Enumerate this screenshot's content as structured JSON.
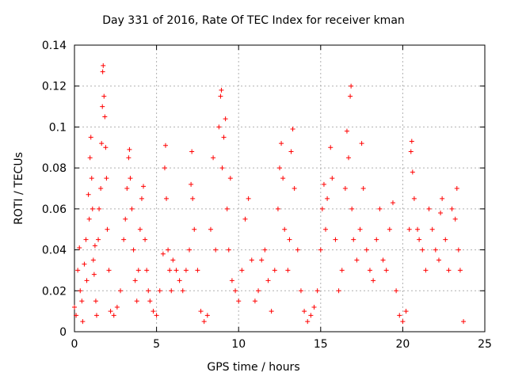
{
  "chart_data": {
    "type": "scatter",
    "title": "Day 331 of 2016, Rate Of TEC Index for receiver kman",
    "xlabel": "GPS time / hours",
    "ylabel": "ROTI / TECUs",
    "xlim": [
      0,
      24
    ],
    "ylim": [
      0,
      0.14
    ],
    "xticks": [
      0,
      5,
      10,
      15,
      20,
      25
    ],
    "xtick_labels": [
      "0",
      "5",
      "10",
      "15",
      "20",
      "25"
    ],
    "yticks": [
      0,
      0.02,
      0.04,
      0.06,
      0.08,
      0.1,
      0.12,
      0.14
    ],
    "ytick_labels": [
      "0",
      "0.02",
      "0.04",
      "0.06",
      "0.08",
      "0.1",
      "0.12",
      "0.14"
    ],
    "grid": true,
    "marker": "+",
    "color": "#ff0000",
    "series": [
      {
        "points": [
          [
            0.0,
            0.012
          ],
          [
            0.1,
            0.008
          ],
          [
            0.2,
            0.03
          ],
          [
            0.3,
            0.041
          ],
          [
            0.35,
            0.02
          ],
          [
            0.45,
            0.015
          ],
          [
            0.5,
            0.005
          ],
          [
            0.6,
            0.033
          ],
          [
            0.7,
            0.045
          ],
          [
            0.75,
            0.025
          ],
          [
            0.85,
            0.067
          ],
          [
            0.9,
            0.055
          ],
          [
            0.95,
            0.085
          ],
          [
            1.0,
            0.095
          ],
          [
            1.05,
            0.075
          ],
          [
            1.1,
            0.06
          ],
          [
            1.15,
            0.035
          ],
          [
            1.2,
            0.028
          ],
          [
            1.25,
            0.042
          ],
          [
            1.3,
            0.015
          ],
          [
            1.35,
            0.008
          ],
          [
            1.45,
            0.045
          ],
          [
            1.5,
            0.06
          ],
          [
            1.6,
            0.07
          ],
          [
            1.65,
            0.092
          ],
          [
            1.7,
            0.11
          ],
          [
            1.72,
            0.127
          ],
          [
            1.75,
            0.13
          ],
          [
            1.8,
            0.115
          ],
          [
            1.85,
            0.105
          ],
          [
            1.9,
            0.09
          ],
          [
            1.95,
            0.075
          ],
          [
            2.0,
            0.05
          ],
          [
            2.1,
            0.03
          ],
          [
            2.2,
            0.01
          ],
          [
            2.4,
            0.008
          ],
          [
            2.6,
            0.012
          ],
          [
            2.8,
            0.02
          ],
          [
            3.0,
            0.045
          ],
          [
            3.1,
            0.055
          ],
          [
            3.2,
            0.07
          ],
          [
            3.3,
            0.085
          ],
          [
            3.35,
            0.089
          ],
          [
            3.4,
            0.075
          ],
          [
            3.5,
            0.06
          ],
          [
            3.6,
            0.04
          ],
          [
            3.7,
            0.025
          ],
          [
            3.8,
            0.015
          ],
          [
            3.9,
            0.03
          ],
          [
            4.0,
            0.05
          ],
          [
            4.1,
            0.065
          ],
          [
            4.2,
            0.071
          ],
          [
            4.3,
            0.045
          ],
          [
            4.4,
            0.03
          ],
          [
            4.5,
            0.02
          ],
          [
            4.6,
            0.015
          ],
          [
            4.8,
            0.01
          ],
          [
            5.0,
            0.008
          ],
          [
            5.2,
            0.02
          ],
          [
            5.4,
            0.038
          ],
          [
            5.5,
            0.08
          ],
          [
            5.55,
            0.091
          ],
          [
            5.6,
            0.065
          ],
          [
            5.7,
            0.04
          ],
          [
            5.8,
            0.03
          ],
          [
            5.9,
            0.02
          ],
          [
            6.0,
            0.035
          ],
          [
            6.2,
            0.03
          ],
          [
            6.4,
            0.025
          ],
          [
            6.6,
            0.02
          ],
          [
            6.8,
            0.03
          ],
          [
            7.0,
            0.04
          ],
          [
            7.1,
            0.072
          ],
          [
            7.15,
            0.088
          ],
          [
            7.2,
            0.065
          ],
          [
            7.3,
            0.05
          ],
          [
            7.5,
            0.03
          ],
          [
            7.7,
            0.01
          ],
          [
            7.9,
            0.005
          ],
          [
            8.1,
            0.008
          ],
          [
            8.3,
            0.05
          ],
          [
            8.45,
            0.085
          ],
          [
            8.6,
            0.04
          ],
          [
            8.8,
            0.1
          ],
          [
            8.9,
            0.115
          ],
          [
            8.95,
            0.118
          ],
          [
            9.0,
            0.08
          ],
          [
            9.1,
            0.095
          ],
          [
            9.2,
            0.104
          ],
          [
            9.3,
            0.06
          ],
          [
            9.4,
            0.04
          ],
          [
            9.5,
            0.075
          ],
          [
            9.6,
            0.025
          ],
          [
            9.8,
            0.02
          ],
          [
            10.0,
            0.015
          ],
          [
            10.2,
            0.03
          ],
          [
            10.4,
            0.055
          ],
          [
            10.6,
            0.065
          ],
          [
            10.8,
            0.035
          ],
          [
            11.0,
            0.015
          ],
          [
            11.2,
            0.02
          ],
          [
            11.4,
            0.035
          ],
          [
            11.6,
            0.04
          ],
          [
            11.8,
            0.025
          ],
          [
            12.0,
            0.01
          ],
          [
            12.2,
            0.03
          ],
          [
            12.4,
            0.06
          ],
          [
            12.5,
            0.08
          ],
          [
            12.6,
            0.092
          ],
          [
            12.7,
            0.075
          ],
          [
            12.8,
            0.05
          ],
          [
            13.0,
            0.03
          ],
          [
            13.1,
            0.045
          ],
          [
            13.2,
            0.088
          ],
          [
            13.3,
            0.099
          ],
          [
            13.4,
            0.07
          ],
          [
            13.6,
            0.04
          ],
          [
            13.8,
            0.02
          ],
          [
            14.0,
            0.01
          ],
          [
            14.2,
            0.005
          ],
          [
            14.4,
            0.008
          ],
          [
            14.6,
            0.012
          ],
          [
            14.8,
            0.02
          ],
          [
            15.0,
            0.04
          ],
          [
            15.1,
            0.06
          ],
          [
            15.2,
            0.072
          ],
          [
            15.3,
            0.05
          ],
          [
            15.4,
            0.065
          ],
          [
            15.6,
            0.09
          ],
          [
            15.7,
            0.075
          ],
          [
            15.9,
            0.045
          ],
          [
            16.1,
            0.02
          ],
          [
            16.3,
            0.03
          ],
          [
            16.5,
            0.07
          ],
          [
            16.6,
            0.098
          ],
          [
            16.7,
            0.085
          ],
          [
            16.8,
            0.115
          ],
          [
            16.85,
            0.12
          ],
          [
            16.9,
            0.06
          ],
          [
            17.0,
            0.045
          ],
          [
            17.2,
            0.035
          ],
          [
            17.4,
            0.05
          ],
          [
            17.5,
            0.092
          ],
          [
            17.6,
            0.07
          ],
          [
            17.8,
            0.04
          ],
          [
            18.0,
            0.03
          ],
          [
            18.2,
            0.025
          ],
          [
            18.4,
            0.045
          ],
          [
            18.6,
            0.06
          ],
          [
            18.8,
            0.035
          ],
          [
            19.0,
            0.03
          ],
          [
            19.2,
            0.05
          ],
          [
            19.4,
            0.063
          ],
          [
            19.6,
            0.02
          ],
          [
            19.8,
            0.008
          ],
          [
            20.0,
            0.005
          ],
          [
            20.2,
            0.01
          ],
          [
            20.4,
            0.05
          ],
          [
            20.5,
            0.088
          ],
          [
            20.55,
            0.093
          ],
          [
            20.6,
            0.078
          ],
          [
            20.7,
            0.065
          ],
          [
            20.9,
            0.05
          ],
          [
            21.0,
            0.045
          ],
          [
            21.2,
            0.04
          ],
          [
            21.4,
            0.03
          ],
          [
            21.6,
            0.06
          ],
          [
            21.8,
            0.05
          ],
          [
            22.0,
            0.04
          ],
          [
            22.2,
            0.035
          ],
          [
            22.3,
            0.058
          ],
          [
            22.4,
            0.065
          ],
          [
            22.6,
            0.045
          ],
          [
            22.8,
            0.03
          ],
          [
            23.0,
            0.06
          ],
          [
            23.2,
            0.055
          ],
          [
            23.3,
            0.07
          ],
          [
            23.4,
            0.04
          ],
          [
            23.5,
            0.03
          ],
          [
            23.7,
            0.005
          ]
        ]
      }
    ]
  }
}
